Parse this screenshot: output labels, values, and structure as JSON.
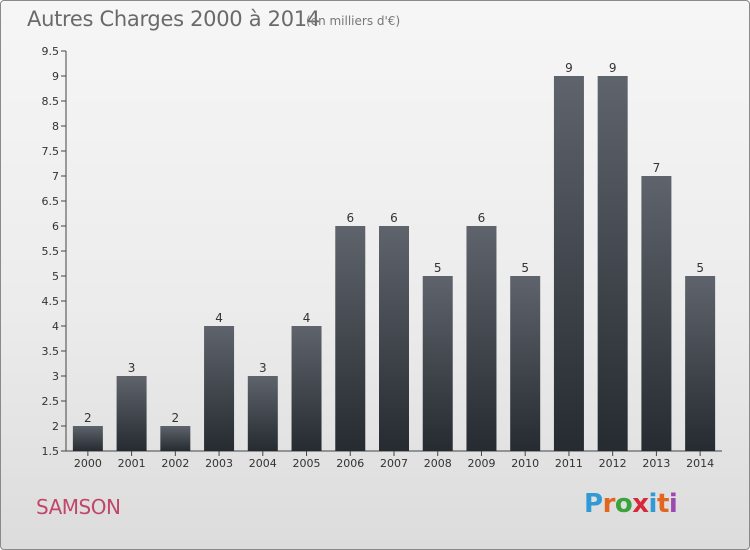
{
  "header": {
    "title": "Autres Charges 2000 à 2014",
    "subtitle": "(en milliers d'€)"
  },
  "footer": {
    "town": "SAMSON",
    "logo": "Proxiti",
    "logo_colors": [
      "#2f9ad6",
      "#e2661f",
      "#3aa43a",
      "#d42a3a",
      "#2f9ad6",
      "#e2661f",
      "#9b4bb0"
    ]
  },
  "chart_data": {
    "type": "bar",
    "title": "Autres Charges 2000 à 2014",
    "subtitle": "(en milliers d'€)",
    "xlabel": "",
    "ylabel": "",
    "categories": [
      "2000",
      "2001",
      "2002",
      "2003",
      "2004",
      "2005",
      "2006",
      "2007",
      "2008",
      "2009",
      "2010",
      "2011",
      "2012",
      "2013",
      "2014"
    ],
    "values": [
      2,
      3,
      2,
      4,
      3,
      4,
      6,
      6,
      5,
      6,
      5,
      9,
      9,
      7,
      5
    ],
    "ylim": [
      1.5,
      9.5
    ],
    "yticks": [
      "1.5",
      "2",
      "2.5",
      "3",
      "3.5",
      "4",
      "4.5",
      "5",
      "5.5",
      "6",
      "6.5",
      "7",
      "7.5",
      "8",
      "8.5",
      "9",
      "9.5"
    ],
    "grid": false,
    "bar_color_top": "#5f646c",
    "bar_color_bottom": "#262b31"
  }
}
